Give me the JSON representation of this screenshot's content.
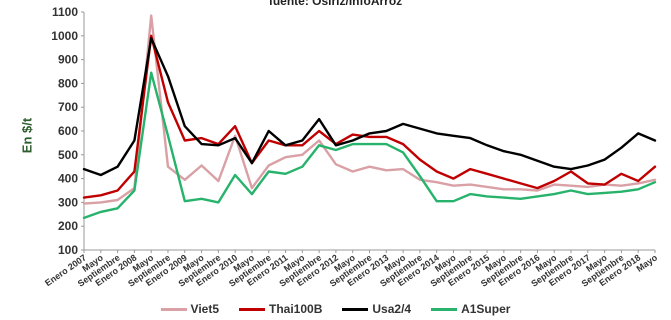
{
  "header": {
    "source": "fuente: Osiriz/InfoArroz"
  },
  "chart_data": {
    "type": "line",
    "title": "",
    "subtitle": "fuente: Osiriz/InfoArroz",
    "xlabel": "",
    "ylabel": "En $/t",
    "ylim": [
      100,
      1100
    ],
    "yticks": [
      100,
      200,
      300,
      400,
      500,
      600,
      700,
      800,
      900,
      1000,
      1100
    ],
    "grid": false,
    "legend_position": "bottom",
    "x": [
      0,
      4,
      8,
      12,
      16,
      20,
      24,
      28,
      32,
      36,
      40,
      44,
      48,
      52,
      56,
      60,
      64,
      68,
      72,
      76,
      80,
      84,
      88,
      92,
      96,
      100,
      104,
      108,
      112,
      116,
      120,
      124,
      128,
      132,
      136
    ],
    "x_tick_positions": [
      0,
      4,
      8,
      12,
      16,
      20,
      24,
      28,
      32,
      36,
      40,
      44,
      48,
      52,
      56,
      60,
      64,
      68,
      72,
      76,
      80,
      84,
      88,
      92,
      96,
      100,
      104,
      108,
      112,
      116,
      120,
      124,
      128,
      132,
      136
    ],
    "x_tick_labels": [
      "Enero 2007",
      "Mayo",
      "Septiembre",
      "Enero 2008",
      "Mayo",
      "Septiembre",
      "Enero 2009",
      "Mayo",
      "Septiembre",
      "Enero 2010",
      "Mayo",
      "Septiembre",
      "Enero 2011",
      "Mayo",
      "Septiembre",
      "Enero 2012",
      "Mayo",
      "Septiembre",
      "Enero 2013",
      "Mayo",
      "Septiembre",
      "Enero 2014",
      "Mayo",
      "Septiembre",
      "Enero 2015",
      "Mayo",
      "Septiembre",
      "Enero 2016",
      "Mayo",
      "Septiembre",
      "Enero 2017",
      "Mayo",
      "Septiembre",
      "Enero 2018",
      "Mayo"
    ],
    "series": [
      {
        "name": "Viet5",
        "color": "#d9a0a6",
        "values": [
          295,
          300,
          310,
          360,
          1085,
          450,
          395,
          455,
          390,
          580,
          360,
          455,
          490,
          500,
          560,
          460,
          430,
          450,
          435,
          440,
          395,
          385,
          370,
          375,
          365,
          355,
          355,
          350,
          375,
          370,
          365,
          375,
          370,
          380,
          395
        ]
      },
      {
        "name": "Thai100B",
        "color": "#c00000",
        "values": [
          320,
          330,
          350,
          430,
          1000,
          720,
          560,
          570,
          545,
          620,
          465,
          560,
          540,
          540,
          600,
          545,
          585,
          575,
          575,
          545,
          480,
          430,
          400,
          440,
          420,
          400,
          380,
          360,
          390,
          430,
          380,
          375,
          420,
          390,
          450
        ]
      },
      {
        "name": "Usa2/4",
        "color": "#000000",
        "values": [
          440,
          415,
          450,
          560,
          990,
          830,
          620,
          545,
          540,
          570,
          465,
          600,
          540,
          560,
          650,
          540,
          560,
          590,
          600,
          630,
          610,
          590,
          580,
          570,
          540,
          515,
          500,
          475,
          450,
          440,
          455,
          480,
          530,
          590,
          560
        ]
      },
      {
        "name": "A1Super",
        "color": "#27b36b",
        "values": [
          235,
          260,
          275,
          350,
          845,
          580,
          305,
          315,
          300,
          415,
          335,
          430,
          420,
          450,
          540,
          520,
          545,
          545,
          545,
          510,
          410,
          305,
          305,
          335,
          325,
          320,
          315,
          325,
          335,
          350,
          335,
          340,
          345,
          355,
          385
        ]
      }
    ]
  }
}
